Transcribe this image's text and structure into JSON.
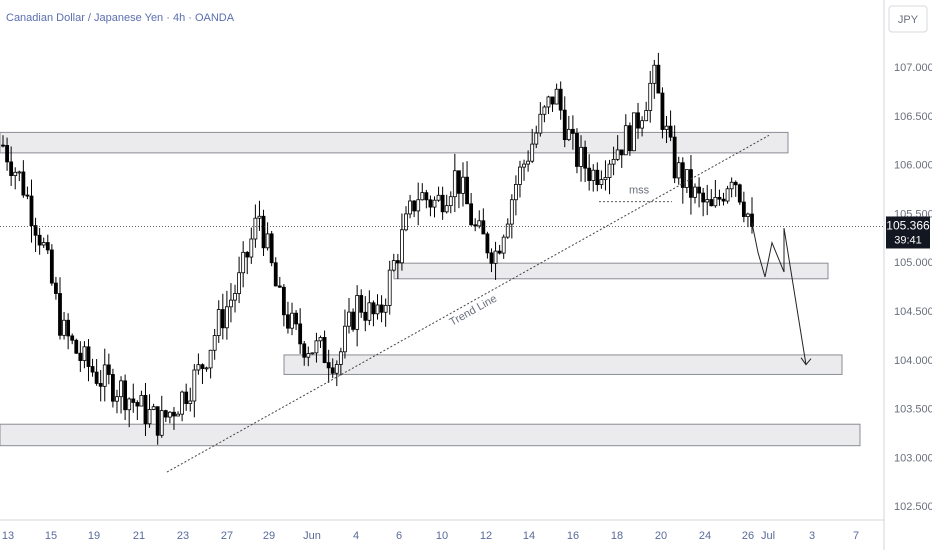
{
  "header": {
    "title": "Canadian Dollar / Japanese Yen · 4h · OANDA",
    "currency_label": "JPY"
  },
  "price_badge": {
    "price": "105.366",
    "countdown": "39:41"
  },
  "annotations": {
    "trend_line_label": "Trend Line",
    "mss_label": "mss"
  },
  "colors": {
    "candle": "#000000",
    "zone_fill": "#ebebed",
    "zone_stroke": "#8a8d94",
    "axis_text": "#6a6f7c",
    "badge_bg": "#131722"
  },
  "chart_data": {
    "type": "candlestick",
    "title": "Canadian Dollar / Japanese Yen · 4h · OANDA",
    "ylabel": "JPY",
    "ylim": [
      102.25,
      107.6
    ],
    "y_ticks": [
      "107.000",
      "106.500",
      "106.000",
      "105.500",
      "105.000",
      "104.500",
      "104.000",
      "103.500",
      "103.000",
      "102.500"
    ],
    "x_ticks": [
      "13",
      "15",
      "19",
      "21",
      "23",
      "27",
      "29",
      "Jun",
      "4",
      "6",
      "10",
      "12",
      "14",
      "16",
      "18",
      "20",
      "24",
      "26",
      "Jul",
      "3",
      "7"
    ],
    "current_price": 105.366,
    "price_path": [
      [
        "13",
        106.2
      ],
      [
        "14",
        105.8
      ],
      [
        "15",
        105.2
      ],
      [
        "16",
        104.3
      ],
      [
        "17",
        104.0
      ],
      [
        "19",
        103.8
      ],
      [
        "20",
        103.7
      ],
      [
        "21",
        103.5
      ],
      [
        "22",
        103.35
      ],
      [
        "23",
        103.6
      ],
      [
        "24",
        103.9
      ],
      [
        "27",
        104.4
      ],
      [
        "28",
        104.8
      ],
      [
        "29",
        105.5
      ],
      [
        "30",
        104.6
      ],
      [
        "31",
        104.2
      ],
      [
        "Jun",
        104.1
      ],
      [
        "3",
        104.0
      ],
      [
        "4",
        104.6
      ],
      [
        "5",
        104.4
      ],
      [
        "6",
        105.1
      ],
      [
        "7",
        105.7
      ],
      [
        "10",
        105.6
      ],
      [
        "11",
        105.9
      ],
      [
        "12",
        105.3
      ],
      [
        "13",
        105.1
      ],
      [
        "14",
        105.8
      ],
      [
        "16",
        106.3
      ],
      [
        "17",
        106.75
      ],
      [
        "18",
        106.1
      ],
      [
        "19",
        105.9
      ],
      [
        "20",
        106.15
      ],
      [
        "21",
        106.35
      ],
      [
        "24",
        106.9
      ],
      [
        "25",
        106.0
      ],
      [
        "26",
        105.7
      ],
      [
        "27",
        105.5
      ],
      [
        "28",
        105.95
      ],
      [
        "Jul",
        105.37
      ]
    ],
    "zones": [
      {
        "from": 106.12,
        "to": 106.33
      },
      {
        "from": 104.83,
        "to": 104.99
      },
      {
        "from": 103.85,
        "to": 104.05
      },
      {
        "from": 103.12,
        "to": 103.34
      }
    ],
    "trend_line": {
      "from": [
        "22",
        102.85
      ],
      "to": [
        "Jul",
        106.3
      ]
    },
    "projection": [
      105.4,
      105.1,
      104.85,
      105.2,
      104.9,
      105.35,
      103.95
    ],
    "grid": false
  }
}
